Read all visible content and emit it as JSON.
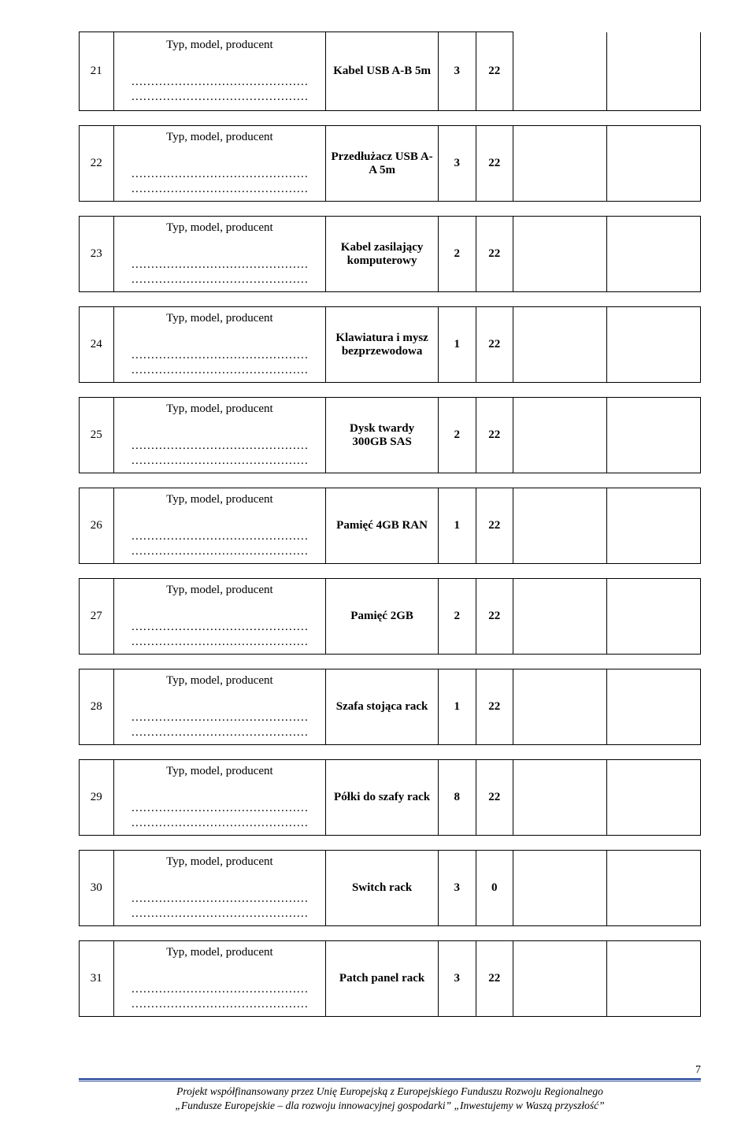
{
  "label": "Typ, model, producent",
  "dots1": "………………………………………",
  "dots2": "………………………………………",
  "rows": [
    {
      "n": "21",
      "desc": "Kabel USB A-B 5m",
      "q": "3",
      "v": "22"
    },
    {
      "n": "22",
      "desc": "Przedłużacz USB A-A 5m",
      "q": "3",
      "v": "22"
    },
    {
      "n": "23",
      "desc": "Kabel zasilający komputerowy",
      "q": "2",
      "v": "22"
    },
    {
      "n": "24",
      "desc": "Klawiatura i mysz bezprzewodowa",
      "q": "1",
      "v": "22"
    },
    {
      "n": "25",
      "desc": "Dysk twardy 300GB SAS",
      "q": "2",
      "v": "22"
    },
    {
      "n": "26",
      "desc": "Pamięć 4GB RAN",
      "q": "1",
      "v": "22"
    },
    {
      "n": "27",
      "desc": "Pamięć 2GB",
      "q": "2",
      "v": "22"
    },
    {
      "n": "28",
      "desc": "Szafa stojąca rack",
      "q": "1",
      "v": "22"
    },
    {
      "n": "29",
      "desc": "Półki do szafy rack",
      "q": "8",
      "v": "22"
    },
    {
      "n": "30",
      "desc": "Switch rack",
      "q": "3",
      "v": "0"
    },
    {
      "n": "31",
      "desc": "Patch panel rack",
      "q": "3",
      "v": "22"
    }
  ],
  "footer": {
    "line1": "Projekt współfinansowany przez Unię Europejską z Europejskiego Funduszu Rozwoju Regionalnego",
    "line2": "„Fundusze Europejskie – dla rozwoju innowacyjnej gospodarki”  „Inwestujemy w Waszą przyszłość”"
  },
  "page_number": "7"
}
